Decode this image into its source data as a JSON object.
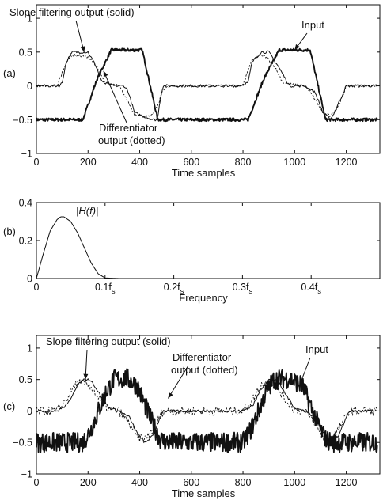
{
  "chart_data": [
    {
      "panel_label": "(a)",
      "type": "line",
      "xlabel": "Time samples",
      "ylabel": "",
      "xlim": [
        0,
        1330
      ],
      "ylim": [
        -1,
        1.2
      ],
      "xticks": [
        0,
        200,
        400,
        600,
        800,
        1000,
        1200
      ],
      "yticks": [
        -1,
        -0.5,
        0,
        0.5,
        1
      ],
      "xtick_labels": [
        "0",
        "200",
        "400",
        "600",
        "800",
        "1000",
        "1200"
      ],
      "ytick_labels": [
        "−1",
        "−0.5",
        "0",
        "0.5",
        "1"
      ],
      "grid": false,
      "annotations": [
        {
          "text": "Slope filtering output (solid)",
          "points_to": [
            185,
            0.5
          ]
        },
        {
          "text": "Input",
          "points_to": [
            1000,
            0.53
          ]
        },
        {
          "text": "Differentiator",
          "points_to": [
            260,
            0.22
          ]
        },
        {
          "text": "output (dotted)",
          "points_to": null
        }
      ],
      "series": [
        {
          "role": "input",
          "style": "solid-thick",
          "x": [
            0,
            180,
            235,
            290,
            410,
            470,
            590,
            820,
            880,
            940,
            1060,
            1120,
            1240,
            1320
          ],
          "y": [
            -0.5,
            -0.5,
            0.1,
            0.53,
            0.53,
            -0.5,
            -0.5,
            -0.5,
            0.1,
            0.53,
            0.53,
            -0.5,
            -0.5,
            -0.5
          ]
        },
        {
          "role": "slope filtering output",
          "style": "solid",
          "x": [
            0,
            90,
            100,
            115,
            140,
            200,
            230,
            255,
            300,
            340,
            355,
            380,
            450,
            470,
            475,
            490,
            520,
            740,
            780,
            820,
            835,
            870,
            900,
            935,
            980,
            1020,
            1040,
            1080,
            1110,
            1140,
            1165,
            1200,
            1320
          ],
          "y": [
            0,
            0,
            0.05,
            0.35,
            0.5,
            0.5,
            0.3,
            0.05,
            0.0,
            0.0,
            -0.08,
            -0.4,
            -0.5,
            -0.5,
            -0.3,
            0,
            0,
            0,
            0,
            0.05,
            0.35,
            0.5,
            0.5,
            0.3,
            0.0,
            0.0,
            0.0,
            -0.1,
            -0.4,
            -0.5,
            -0.3,
            0,
            0
          ]
        },
        {
          "role": "differentiator output",
          "style": "dotted",
          "x": [
            0,
            80,
            110,
            130,
            160,
            200,
            240,
            265,
            290,
            320,
            350,
            380,
            420,
            445,
            470,
            490,
            520,
            740,
            800,
            830,
            860,
            890,
            920,
            955,
            990,
            1040,
            1080,
            1110,
            1140,
            1170,
            1200,
            1320
          ],
          "y": [
            0,
            0,
            0.3,
            0.45,
            0.45,
            0.43,
            0.25,
            0.05,
            0.02,
            0.0,
            -0.2,
            -0.42,
            -0.45,
            -0.45,
            -0.3,
            -0.05,
            0,
            0,
            0,
            0.35,
            0.45,
            0.43,
            0.3,
            0.05,
            0.02,
            0.0,
            -0.2,
            -0.4,
            -0.45,
            -0.3,
            0,
            0
          ]
        }
      ]
    },
    {
      "panel_label": "(b)",
      "type": "line",
      "xlabel": "Frequency",
      "ylabel": "",
      "xlim": [
        0,
        0.5
      ],
      "ylim": [
        0,
        0.4
      ],
      "xticks": [
        0,
        0.1,
        0.2,
        0.3,
        0.4
      ],
      "yticks": [
        0,
        0.2,
        0.4
      ],
      "xtick_labels": [
        {
          "value": "0",
          "sub": ""
        },
        {
          "value": "0.1f",
          "sub": "s"
        },
        {
          "value": "0.2f",
          "sub": "s"
        },
        {
          "value": "0.3f",
          "sub": "s"
        },
        {
          "value": "0.4f",
          "sub": "s"
        }
      ],
      "ytick_labels": [
        "0",
        "0.2",
        "0.4"
      ],
      "grid": false,
      "annotations": [
        {
          "text": "|H(f)|",
          "points_to": null
        }
      ],
      "series": [
        {
          "role": "|H(f)|",
          "style": "solid",
          "x": [
            0,
            0.01,
            0.02,
            0.03,
            0.035,
            0.04,
            0.05,
            0.06,
            0.07,
            0.08,
            0.09,
            0.1,
            0.12,
            0.5
          ],
          "y": [
            0,
            0.13,
            0.25,
            0.31,
            0.325,
            0.325,
            0.3,
            0.24,
            0.16,
            0.08,
            0.025,
            0.003,
            0,
            0
          ]
        }
      ]
    },
    {
      "panel_label": "(c)",
      "type": "line",
      "xlabel": "Time samples",
      "ylabel": "",
      "xlim": [
        0,
        1330
      ],
      "ylim": [
        -1,
        1.2
      ],
      "xticks": [
        0,
        200,
        400,
        600,
        800,
        1000,
        1200
      ],
      "yticks": [
        -1,
        -0.5,
        0,
        0.5,
        1
      ],
      "xtick_labels": [
        "0",
        "200",
        "400",
        "600",
        "800",
        "1000",
        "1200"
      ],
      "ytick_labels": [
        "−1",
        "−0.5",
        "0",
        "0.5",
        "1"
      ],
      "grid": false,
      "annotations": [
        {
          "text": "Slope filtering output (solid)",
          "points_to": [
            190,
            0.5
          ]
        },
        {
          "text": "Differentiator",
          "points_to": [
            510,
            0.2
          ]
        },
        {
          "text": "output (dotted)",
          "points_to": null
        },
        {
          "text": "Input",
          "points_to": [
            1020,
            0.42
          ]
        }
      ],
      "series": [
        {
          "role": "input",
          "style": "solid-thick-noisy",
          "x": [
            0,
            180,
            210,
            240,
            270,
            300,
            350,
            390,
            420,
            450,
            480,
            510,
            800,
            830,
            860,
            890,
            920,
            980,
            1030,
            1060,
            1090,
            1120,
            1150,
            1320
          ],
          "y": [
            -0.5,
            -0.5,
            -0.3,
            0.0,
            0.3,
            0.5,
            0.52,
            0.4,
            0.1,
            -0.2,
            -0.45,
            -0.5,
            -0.5,
            -0.3,
            0.0,
            0.3,
            0.5,
            0.52,
            0.4,
            0.1,
            -0.2,
            -0.45,
            -0.5,
            -0.5
          ]
        },
        {
          "role": "slope filtering output",
          "style": "solid",
          "x": [
            0,
            80,
            120,
            150,
            180,
            210,
            240,
            280,
            320,
            360,
            390,
            420,
            450,
            490,
            760,
            800,
            840,
            870,
            900,
            930,
            960,
            1000,
            1040,
            1080,
            1110,
            1140,
            1170,
            1210,
            1320
          ],
          "y": [
            0,
            0,
            0.1,
            0.35,
            0.5,
            0.5,
            0.3,
            0.05,
            0.0,
            -0.1,
            -0.35,
            -0.5,
            -0.4,
            0,
            0,
            0,
            0.1,
            0.35,
            0.5,
            0.5,
            0.3,
            0.05,
            0.0,
            -0.1,
            -0.35,
            -0.5,
            -0.4,
            0,
            0
          ]
        },
        {
          "role": "differentiator output",
          "style": "dotted-noisy",
          "x": [
            0,
            80,
            120,
            150,
            180,
            210,
            240,
            280,
            320,
            360,
            390,
            420,
            450,
            490,
            760,
            800,
            840,
            870,
            900,
            930,
            960,
            1000,
            1040,
            1080,
            1110,
            1140,
            1170,
            1210,
            1320
          ],
          "y": [
            0,
            0,
            0.2,
            0.42,
            0.45,
            0.4,
            0.2,
            0.02,
            0.0,
            -0.2,
            -0.42,
            -0.45,
            -0.3,
            0,
            0,
            0,
            0.2,
            0.42,
            0.45,
            0.4,
            0.2,
            0.02,
            0.0,
            -0.2,
            -0.42,
            -0.45,
            -0.3,
            0,
            0
          ]
        }
      ]
    }
  ]
}
